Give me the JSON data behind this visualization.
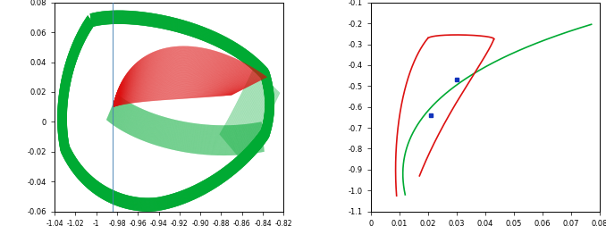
{
  "left_xlim": [
    -1.04,
    -0.82
  ],
  "left_ylim": [
    -0.06,
    0.08
  ],
  "right_xlim": [
    0.0,
    0.08
  ],
  "right_ylim": [
    -1.1,
    -0.1
  ],
  "red_color": "#dd1111",
  "green_color": "#00aa33",
  "blue_marker_color": "#1133bb",
  "left_xticks": [
    -1.04,
    -1.02,
    -1.0,
    -0.98,
    -0.96,
    -0.94,
    -0.92,
    -0.9,
    -0.88,
    -0.86,
    -0.84,
    -0.82
  ],
  "left_yticks": [
    -0.06,
    -0.04,
    -0.02,
    0.0,
    0.02,
    0.04,
    0.06,
    0.08
  ],
  "right_xticks": [
    0.0,
    0.01,
    0.02,
    0.03,
    0.04,
    0.05,
    0.06,
    0.07,
    0.08
  ],
  "right_yticks": [
    -1.1,
    -1.0,
    -0.9,
    -0.8,
    -0.7,
    -0.6,
    -0.5,
    -0.4,
    -0.3,
    -0.2,
    -0.1
  ],
  "n_tubes": 200,
  "lw": 0.25
}
